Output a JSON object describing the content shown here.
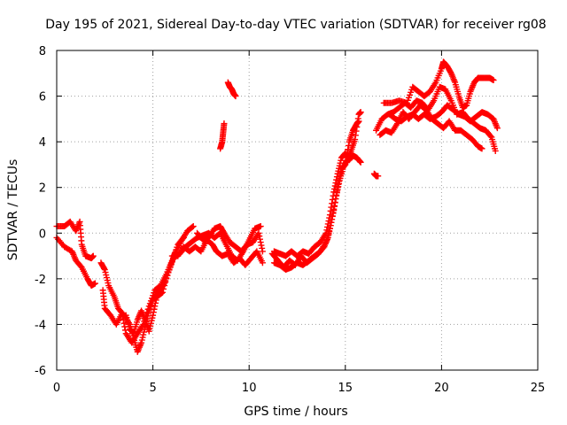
{
  "chart_data": {
    "type": "scatter",
    "title": "Day 195 of 2021, Sidereal Day-to-day VTEC variation (SDTVAR) for receiver rg08",
    "xlabel": "GPS time / hours",
    "ylabel": "SDTVAR / TECUs",
    "xlim": [
      0,
      25
    ],
    "ylim": [
      -6,
      8
    ],
    "xticks": [
      0,
      5,
      10,
      15,
      20,
      25
    ],
    "yticks": [
      -6,
      -4,
      -2,
      0,
      2,
      4,
      6,
      8
    ],
    "grid": true,
    "marker": "plus",
    "color": "#ff0000",
    "series": [
      {
        "name": "trace-1",
        "points": [
          [
            0.0,
            0.3
          ],
          [
            0.4,
            0.3
          ],
          [
            0.7,
            0.5
          ],
          [
            1.0,
            0.1
          ],
          [
            1.2,
            0.5
          ],
          [
            1.3,
            -0.5
          ],
          [
            1.5,
            -1.0
          ],
          [
            1.8,
            -1.1
          ],
          [
            1.9,
            -1.0
          ]
        ]
      },
      {
        "name": "trace-2",
        "points": [
          [
            0.0,
            -0.2
          ],
          [
            0.4,
            -0.6
          ],
          [
            0.8,
            -0.8
          ],
          [
            1.0,
            -1.2
          ],
          [
            1.3,
            -1.5
          ],
          [
            1.6,
            -2.0
          ],
          [
            1.8,
            -2.3
          ],
          [
            2.0,
            -2.2
          ]
        ]
      },
      {
        "name": "trace-3",
        "points": [
          [
            2.3,
            -1.3
          ],
          [
            2.5,
            -1.6
          ],
          [
            2.7,
            -2.3
          ],
          [
            3.0,
            -2.8
          ],
          [
            3.2,
            -3.3
          ],
          [
            3.5,
            -3.6
          ],
          [
            3.8,
            -4.0
          ],
          [
            4.0,
            -4.6
          ],
          [
            4.2,
            -5.2
          ],
          [
            4.4,
            -4.8
          ],
          [
            4.6,
            -4.1
          ],
          [
            4.8,
            -3.4
          ],
          [
            5.0,
            -2.9
          ],
          [
            5.3,
            -2.6
          ],
          [
            5.6,
            -2.2
          ],
          [
            5.9,
            -1.5
          ],
          [
            6.2,
            -0.8
          ],
          [
            6.5,
            -0.3
          ],
          [
            6.8,
            0.1
          ],
          [
            7.1,
            0.3
          ]
        ]
      },
      {
        "name": "trace-4",
        "points": [
          [
            2.4,
            -2.5
          ],
          [
            2.5,
            -3.3
          ],
          [
            2.8,
            -3.6
          ],
          [
            3.1,
            -4.0
          ],
          [
            3.4,
            -3.5
          ],
          [
            3.6,
            -4.4
          ],
          [
            3.9,
            -4.8
          ],
          [
            4.2,
            -4.4
          ],
          [
            4.5,
            -4.0
          ],
          [
            4.8,
            -3.2
          ],
          [
            5.1,
            -2.5
          ],
          [
            5.4,
            -2.3
          ],
          [
            5.7,
            -1.8
          ],
          [
            6.0,
            -1.2
          ],
          [
            6.3,
            -0.5
          ],
          [
            6.6,
            -0.2
          ]
        ]
      },
      {
        "name": "trace-5",
        "points": [
          [
            3.6,
            -3.6
          ],
          [
            3.8,
            -4.2
          ],
          [
            4.0,
            -4.4
          ],
          [
            4.2,
            -3.8
          ],
          [
            4.4,
            -3.4
          ],
          [
            4.6,
            -3.8
          ],
          [
            4.8,
            -4.3
          ],
          [
            5.0,
            -3.6
          ],
          [
            5.2,
            -2.8
          ],
          [
            5.5,
            -2.6
          ],
          [
            5.8,
            -1.7
          ],
          [
            6.1,
            -1.0
          ],
          [
            6.4,
            -0.9
          ],
          [
            6.7,
            -0.6
          ],
          [
            7.0,
            -0.4
          ],
          [
            7.3,
            -0.2
          ],
          [
            7.6,
            -0.1
          ],
          [
            7.9,
            0.0
          ],
          [
            8.2,
            -0.2
          ],
          [
            8.5,
            0.0
          ],
          [
            8.8,
            -0.5
          ],
          [
            9.1,
            -1.0
          ],
          [
            9.4,
            -1.2
          ],
          [
            9.7,
            -0.8
          ],
          [
            10.0,
            -0.3
          ],
          [
            10.3,
            0.2
          ],
          [
            10.6,
            0.3
          ]
        ]
      },
      {
        "name": "trace-6",
        "points": [
          [
            6.0,
            -1.0
          ],
          [
            6.3,
            -1.0
          ],
          [
            6.6,
            -0.6
          ],
          [
            6.9,
            -0.8
          ],
          [
            7.2,
            -0.6
          ],
          [
            7.5,
            -0.8
          ],
          [
            7.8,
            -0.3
          ],
          [
            8.1,
            -0.5
          ],
          [
            8.3,
            -0.8
          ],
          [
            8.6,
            -1.0
          ],
          [
            8.9,
            -0.9
          ],
          [
            9.2,
            -1.3
          ],
          [
            9.5,
            -1.1
          ],
          [
            9.8,
            -1.4
          ],
          [
            10.1,
            -1.1
          ],
          [
            10.4,
            -0.8
          ],
          [
            10.7,
            -1.3
          ]
        ]
      },
      {
        "name": "trace-7",
        "points": [
          [
            7.3,
            0.0
          ],
          [
            7.6,
            -0.3
          ],
          [
            7.9,
            -0.2
          ],
          [
            8.2,
            0.2
          ],
          [
            8.5,
            0.3
          ],
          [
            8.7,
            0.0
          ],
          [
            9.0,
            -0.4
          ],
          [
            9.3,
            -0.6
          ],
          [
            9.6,
            -0.8
          ],
          [
            9.9,
            -0.5
          ],
          [
            10.2,
            -0.4
          ],
          [
            10.5,
            0.0
          ],
          [
            10.7,
            -0.8
          ]
        ]
      },
      {
        "name": "trace-8",
        "points": [
          [
            8.5,
            3.7
          ],
          [
            8.6,
            4.0
          ],
          [
            8.65,
            4.4
          ],
          [
            8.7,
            4.8
          ]
        ]
      },
      {
        "name": "trace-9",
        "points": [
          [
            8.9,
            6.6
          ],
          [
            9.0,
            6.4
          ],
          [
            9.1,
            6.3
          ],
          [
            9.2,
            6.1
          ],
          [
            9.3,
            6.0
          ]
        ]
      },
      {
        "name": "trace-10",
        "points": [
          [
            11.2,
            -0.9
          ],
          [
            11.5,
            -1.2
          ],
          [
            11.8,
            -1.5
          ],
          [
            12.1,
            -1.2
          ],
          [
            12.4,
            -1.4
          ],
          [
            12.7,
            -1.0
          ],
          [
            13.0,
            -1.3
          ],
          [
            13.3,
            -1.1
          ],
          [
            13.6,
            -0.9
          ],
          [
            13.9,
            -0.6
          ],
          [
            14.1,
            -0.2
          ],
          [
            14.3,
            0.6
          ],
          [
            14.5,
            1.5
          ],
          [
            14.7,
            2.3
          ],
          [
            14.9,
            2.9
          ],
          [
            15.1,
            3.2
          ],
          [
            15.3,
            3.6
          ],
          [
            15.5,
            4.1
          ],
          [
            15.7,
            5.2
          ],
          [
            15.8,
            5.3
          ]
        ]
      },
      {
        "name": "trace-11",
        "points": [
          [
            11.3,
            -0.8
          ],
          [
            11.6,
            -0.9
          ],
          [
            11.9,
            -1.0
          ],
          [
            12.2,
            -0.8
          ],
          [
            12.5,
            -1.0
          ],
          [
            12.8,
            -0.8
          ],
          [
            13.1,
            -0.9
          ],
          [
            13.4,
            -0.6
          ],
          [
            13.7,
            -0.4
          ],
          [
            14.0,
            0.0
          ],
          [
            14.2,
            0.8
          ],
          [
            14.4,
            1.8
          ],
          [
            14.6,
            2.6
          ],
          [
            14.8,
            3.3
          ],
          [
            15.0,
            3.5
          ],
          [
            15.2,
            3.2
          ],
          [
            15.4,
            3.4
          ],
          [
            15.6,
            3.3
          ],
          [
            15.8,
            3.1
          ]
        ]
      },
      {
        "name": "trace-12",
        "points": [
          [
            11.3,
            -1.3
          ],
          [
            11.6,
            -1.4
          ],
          [
            11.9,
            -1.6
          ],
          [
            12.2,
            -1.5
          ],
          [
            12.5,
            -1.3
          ],
          [
            12.8,
            -1.4
          ],
          [
            13.1,
            -1.2
          ],
          [
            13.4,
            -1.0
          ],
          [
            13.7,
            -0.8
          ],
          [
            14.0,
            -0.4
          ],
          [
            14.2,
            0.2
          ],
          [
            14.4,
            1.0
          ],
          [
            14.6,
            2.0
          ],
          [
            14.8,
            2.8
          ],
          [
            15.0,
            3.0
          ],
          [
            15.2,
            4.0
          ],
          [
            15.4,
            4.5
          ],
          [
            15.6,
            4.8
          ],
          [
            15.7,
            4.9
          ]
        ]
      },
      {
        "name": "trace-13",
        "points": [
          [
            16.5,
            2.6
          ],
          [
            16.6,
            2.5
          ],
          [
            16.7,
            2.5
          ]
        ]
      },
      {
        "name": "trace-14",
        "points": [
          [
            16.6,
            4.5
          ],
          [
            16.9,
            5.0
          ],
          [
            17.2,
            5.2
          ],
          [
            17.5,
            5.3
          ],
          [
            17.8,
            5.5
          ],
          [
            18.1,
            5.7
          ],
          [
            18.4,
            5.5
          ],
          [
            18.7,
            5.8
          ],
          [
            19.0,
            5.7
          ],
          [
            19.3,
            5.4
          ],
          [
            19.6,
            5.8
          ],
          [
            19.9,
            6.4
          ],
          [
            20.2,
            6.3
          ],
          [
            20.5,
            5.8
          ],
          [
            20.8,
            5.2
          ],
          [
            21.1,
            5.3
          ],
          [
            21.4,
            5.0
          ],
          [
            21.7,
            4.8
          ],
          [
            22.0,
            4.6
          ],
          [
            22.3,
            4.5
          ],
          [
            22.6,
            4.2
          ],
          [
            22.8,
            3.6
          ]
        ]
      },
      {
        "name": "trace-15",
        "points": [
          [
            16.8,
            4.3
          ],
          [
            17.1,
            4.5
          ],
          [
            17.4,
            4.4
          ],
          [
            17.7,
            4.8
          ],
          [
            18.0,
            5.3
          ],
          [
            18.3,
            5.0
          ],
          [
            18.6,
            5.3
          ],
          [
            18.9,
            5.6
          ],
          [
            19.2,
            5.4
          ],
          [
            19.5,
            5.0
          ],
          [
            19.8,
            4.8
          ],
          [
            20.1,
            4.6
          ],
          [
            20.4,
            4.9
          ],
          [
            20.7,
            4.5
          ],
          [
            21.0,
            4.5
          ],
          [
            21.3,
            4.3
          ],
          [
            21.6,
            4.1
          ],
          [
            21.9,
            3.8
          ],
          [
            22.1,
            3.7
          ]
        ]
      },
      {
        "name": "trace-16",
        "points": [
          [
            17.0,
            5.7
          ],
          [
            17.4,
            5.7
          ],
          [
            17.8,
            5.8
          ],
          [
            18.2,
            5.7
          ],
          [
            18.5,
            6.4
          ],
          [
            18.8,
            6.2
          ],
          [
            19.1,
            6.0
          ],
          [
            19.4,
            6.2
          ],
          [
            19.7,
            6.6
          ],
          [
            20.0,
            7.2
          ],
          [
            20.1,
            7.5
          ],
          [
            20.3,
            7.3
          ],
          [
            20.5,
            7.0
          ],
          [
            20.7,
            6.6
          ],
          [
            20.9,
            6.0
          ],
          [
            21.1,
            5.5
          ],
          [
            21.3,
            5.6
          ],
          [
            21.5,
            6.2
          ],
          [
            21.7,
            6.6
          ],
          [
            21.9,
            6.8
          ],
          [
            22.2,
            6.8
          ],
          [
            22.5,
            6.8
          ],
          [
            22.7,
            6.7
          ]
        ]
      },
      {
        "name": "trace-17",
        "points": [
          [
            17.3,
            5.2
          ],
          [
            17.6,
            5.0
          ],
          [
            17.9,
            4.9
          ],
          [
            18.2,
            5.1
          ],
          [
            18.5,
            5.2
          ],
          [
            18.8,
            5.0
          ],
          [
            19.1,
            5.2
          ],
          [
            19.4,
            5.0
          ],
          [
            19.7,
            5.1
          ],
          [
            20.0,
            5.3
          ],
          [
            20.3,
            5.6
          ],
          [
            20.6,
            5.4
          ],
          [
            20.9,
            5.2
          ],
          [
            21.2,
            5.1
          ],
          [
            21.5,
            4.9
          ],
          [
            21.8,
            5.1
          ],
          [
            22.1,
            5.3
          ],
          [
            22.4,
            5.2
          ],
          [
            22.7,
            5.0
          ],
          [
            22.9,
            4.6
          ]
        ]
      }
    ]
  }
}
